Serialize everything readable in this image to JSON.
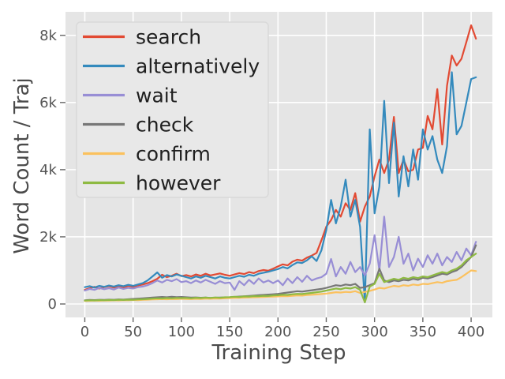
{
  "chart_data": {
    "type": "line",
    "title": "",
    "xlabel": "Training Step",
    "ylabel": "Word Count / Traj",
    "xlim": [
      -20,
      422
    ],
    "ylim": [
      -400,
      8700
    ],
    "grid": true,
    "plot_bg": "#e5e5e5",
    "grid_color": "#ffffff",
    "tick_color": "#666666",
    "tick_label_color": "#555555",
    "legend_position": "upper left",
    "legend_bg": "#e8e8e8",
    "legend_border": "#d9d9d9",
    "legend_text_color": "#1f1f1f",
    "x_ticks": [
      {
        "value": 0,
        "label": "0"
      },
      {
        "value": 50,
        "label": "50"
      },
      {
        "value": 100,
        "label": "100"
      },
      {
        "value": 150,
        "label": "150"
      },
      {
        "value": 200,
        "label": "200"
      },
      {
        "value": 250,
        "label": "250"
      },
      {
        "value": 300,
        "label": "300"
      },
      {
        "value": 350,
        "label": "350"
      },
      {
        "value": 400,
        "label": "400"
      }
    ],
    "y_ticks": [
      {
        "value": 0,
        "label": "0"
      },
      {
        "value": 2000,
        "label": "2k"
      },
      {
        "value": 4000,
        "label": "4k"
      },
      {
        "value": 6000,
        "label": "6k"
      },
      {
        "value": 8000,
        "label": "8k"
      }
    ],
    "x": [
      0,
      5,
      10,
      15,
      20,
      25,
      30,
      35,
      40,
      45,
      50,
      55,
      60,
      65,
      70,
      75,
      80,
      85,
      90,
      95,
      100,
      105,
      110,
      115,
      120,
      125,
      130,
      135,
      140,
      145,
      150,
      155,
      160,
      165,
      170,
      175,
      180,
      185,
      190,
      195,
      200,
      205,
      210,
      215,
      220,
      225,
      230,
      235,
      240,
      245,
      250,
      255,
      260,
      265,
      270,
      275,
      280,
      285,
      290,
      295,
      300,
      305,
      310,
      315,
      320,
      325,
      330,
      335,
      340,
      345,
      350,
      355,
      360,
      365,
      370,
      375,
      380,
      385,
      390,
      395,
      400,
      405
    ],
    "series": [
      {
        "name": "search",
        "color": "#E24A33",
        "values": [
          420,
          470,
          510,
          460,
          500,
          530,
          490,
          520,
          480,
          540,
          510,
          550,
          580,
          620,
          680,
          750,
          870,
          800,
          840,
          900,
          830,
          860,
          820,
          880,
          840,
          900,
          850,
          880,
          910,
          870,
          840,
          880,
          920,
          890,
          950,
          920,
          980,
          1010,
          990,
          1050,
          1120,
          1180,
          1150,
          1260,
          1320,
          1290,
          1380,
          1440,
          1520,
          1900,
          2300,
          2500,
          2800,
          2600,
          3000,
          2800,
          3300,
          2450,
          2900,
          3200,
          3800,
          4300,
          3900,
          4300,
          5570,
          3900,
          4300,
          3950,
          4000,
          4600,
          4650,
          5600,
          5200,
          6400,
          4750,
          6500,
          7400,
          7100,
          7300,
          7800,
          8300,
          7900
        ]
      },
      {
        "name": "alternatively",
        "color": "#348ABD",
        "values": [
          500,
          530,
          490,
          540,
          510,
          550,
          520,
          560,
          530,
          570,
          540,
          580,
          620,
          700,
          820,
          940,
          780,
          860,
          820,
          880,
          840,
          800,
          760,
          820,
          780,
          840,
          800,
          760,
          820,
          780,
          760,
          800,
          840,
          810,
          870,
          840,
          900,
          930,
          960,
          1000,
          1040,
          1100,
          1060,
          1160,
          1240,
          1220,
          1300,
          1420,
          1280,
          1600,
          2200,
          3100,
          2400,
          2900,
          3700,
          2600,
          3100,
          2300,
          50,
          5200,
          2700,
          3500,
          6050,
          3600,
          5400,
          3200,
          4400,
          3500,
          4600,
          3700,
          5200,
          4600,
          5000,
          4300,
          3900,
          4700,
          6900,
          5050,
          5300,
          6000,
          6700,
          6750
        ]
      },
      {
        "name": "wait",
        "color": "#988ED5",
        "values": [
          400,
          450,
          420,
          480,
          440,
          470,
          430,
          490,
          450,
          480,
          460,
          500,
          520,
          560,
          620,
          700,
          640,
          720,
          680,
          740,
          650,
          680,
          620,
          700,
          640,
          720,
          660,
          600,
          680,
          620,
          640,
          420,
          680,
          560,
          720,
          600,
          760,
          640,
          700,
          620,
          700,
          560,
          760,
          620,
          800,
          660,
          840,
          700,
          760,
          800,
          900,
          1340,
          820,
          1100,
          900,
          1250,
          950,
          1100,
          850,
          1200,
          2050,
          1000,
          2600,
          1100,
          1400,
          2000,
          1200,
          1500,
          1000,
          1350,
          1100,
          1450,
          1200,
          1500,
          1150,
          1400,
          1250,
          1550,
          1300,
          1650,
          1450,
          1850
        ]
      },
      {
        "name": "check",
        "color": "#777777",
        "values": [
          110,
          120,
          115,
          125,
          120,
          130,
          125,
          135,
          130,
          140,
          150,
          160,
          170,
          180,
          190,
          200,
          210,
          200,
          215,
          205,
          210,
          200,
          190,
          195,
          185,
          190,
          180,
          185,
          190,
          195,
          200,
          210,
          220,
          230,
          240,
          250,
          260,
          270,
          280,
          290,
          300,
          320,
          340,
          360,
          380,
          370,
          390,
          410,
          430,
          450,
          480,
          520,
          560,
          540,
          580,
          560,
          600,
          480,
          500,
          560,
          620,
          1050,
          700,
          650,
          700,
          680,
          720,
          700,
          750,
          720,
          780,
          760,
          800,
          850,
          900,
          880,
          950,
          1000,
          1100,
          1250,
          1400,
          1750
        ]
      },
      {
        "name": "confirm",
        "color": "#FBC15E",
        "values": [
          90,
          95,
          100,
          95,
          105,
          100,
          110,
          105,
          115,
          110,
          120,
          115,
          125,
          130,
          135,
          140,
          145,
          140,
          150,
          145,
          155,
          150,
          145,
          155,
          150,
          160,
          155,
          165,
          160,
          170,
          175,
          180,
          185,
          190,
          195,
          200,
          205,
          210,
          215,
          220,
          225,
          235,
          230,
          245,
          255,
          250,
          265,
          275,
          285,
          295,
          310,
          330,
          350,
          340,
          360,
          350,
          380,
          330,
          360,
          390,
          430,
          480,
          460,
          500,
          540,
          520,
          560,
          540,
          580,
          560,
          600,
          590,
          620,
          650,
          630,
          680,
          700,
          720,
          800,
          900,
          1000,
          980
        ]
      },
      {
        "name": "however",
        "color": "#8EBA42",
        "values": [
          100,
          110,
          105,
          115,
          110,
          120,
          115,
          125,
          120,
          130,
          125,
          135,
          140,
          150,
          160,
          170,
          165,
          175,
          170,
          180,
          175,
          180,
          170,
          185,
          175,
          190,
          180,
          195,
          185,
          200,
          205,
          215,
          210,
          225,
          220,
          235,
          230,
          245,
          240,
          255,
          260,
          275,
          270,
          290,
          300,
          295,
          315,
          330,
          350,
          370,
          400,
          430,
          460,
          440,
          480,
          460,
          500,
          420,
          50,
          520,
          600,
          900,
          650,
          700,
          750,
          720,
          780,
          750,
          800,
          770,
          820,
          800,
          850,
          900,
          950,
          920,
          1000,
          1050,
          1150,
          1300,
          1400,
          1500
        ]
      }
    ]
  }
}
